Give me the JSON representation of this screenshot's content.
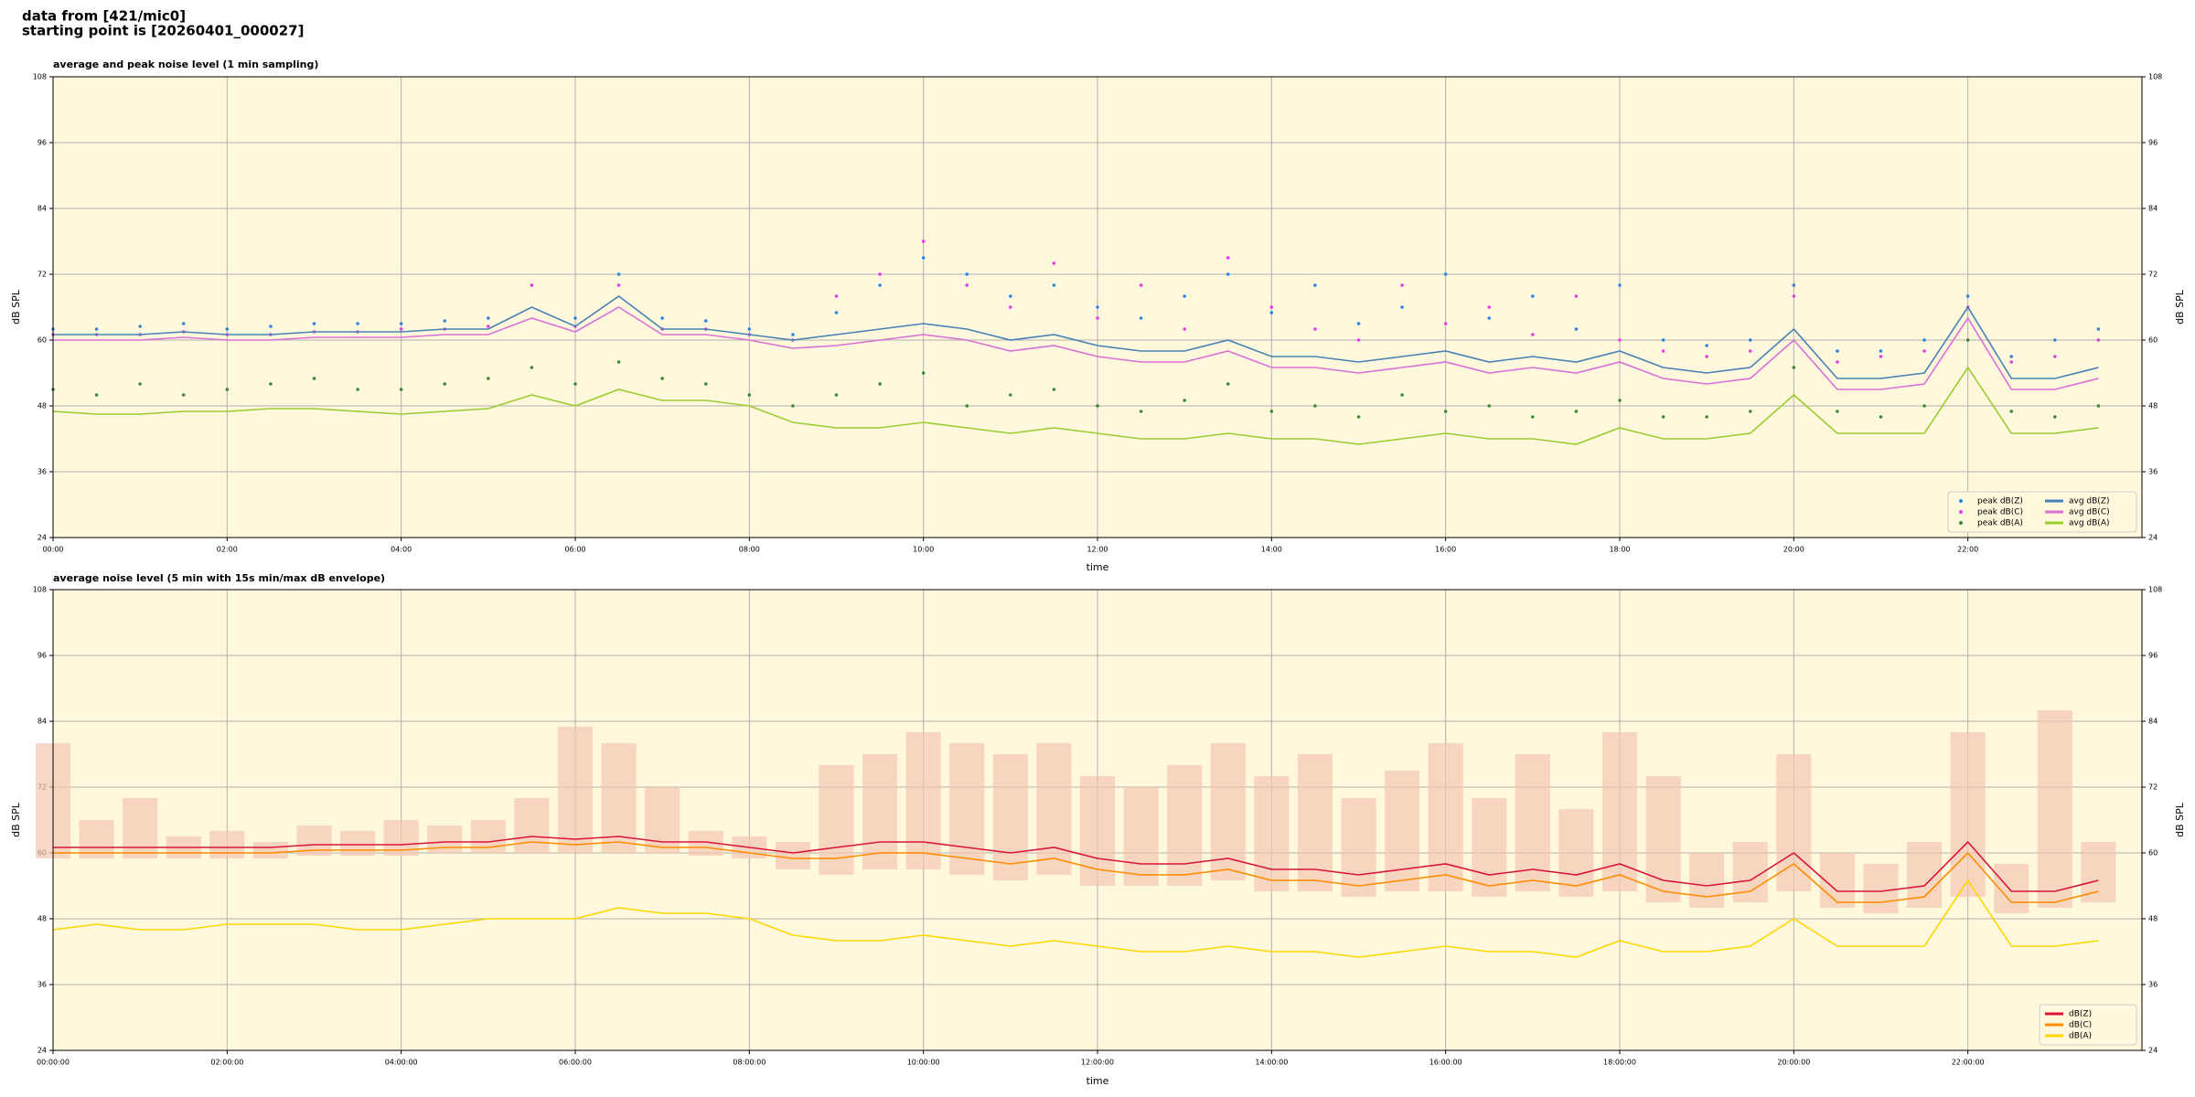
{
  "header": {
    "line1": "data from [421/mic0]",
    "line2": "starting point is [20260401_000027]"
  },
  "chart_data": [
    {
      "type": "line",
      "title": "average and peak noise level (1 min sampling)",
      "xlabel": "time",
      "ylabel": "dB SPL",
      "background": "#fff8dc",
      "grid": true,
      "legend": "lower right",
      "legend_columns": 2,
      "xlim": [
        0,
        24
      ],
      "ylim": [
        24,
        108
      ],
      "yticks": [
        24,
        36,
        48,
        60,
        72,
        84,
        96,
        108
      ],
      "xticks": [
        {
          "value": 0,
          "label": "00:00"
        },
        {
          "value": 2,
          "label": "02:00"
        },
        {
          "value": 4,
          "label": "04:00"
        },
        {
          "value": 6,
          "label": "06:00"
        },
        {
          "value": 8,
          "label": "08:00"
        },
        {
          "value": 10,
          "label": "10:00"
        },
        {
          "value": 12,
          "label": "12:00"
        },
        {
          "value": 14,
          "label": "14:00"
        },
        {
          "value": 16,
          "label": "16:00"
        },
        {
          "value": 18,
          "label": "18:00"
        },
        {
          "value": 20,
          "label": "20:00"
        },
        {
          "value": 22,
          "label": "22:00"
        }
      ],
      "x": [
        0,
        0.5,
        1,
        1.5,
        2,
        2.5,
        3,
        3.5,
        4,
        4.5,
        5,
        5.5,
        6,
        6.5,
        7,
        7.5,
        8,
        8.5,
        9,
        9.5,
        10,
        10.5,
        11,
        11.5,
        12,
        12.5,
        13,
        13.5,
        14,
        14.5,
        15,
        15.5,
        16,
        16.5,
        17,
        17.5,
        18,
        18.5,
        19,
        19.5,
        20,
        20.5,
        21,
        21.5,
        22,
        22.5,
        23,
        23.5
      ],
      "series": [
        {
          "name": "peak dB(Z)",
          "type": "scatter",
          "color": "#2e86de",
          "values": [
            62,
            62,
            62.5,
            63,
            62,
            62.5,
            63,
            63,
            63,
            63.5,
            64,
            70,
            64,
            72,
            64,
            63.5,
            62,
            61,
            65,
            70,
            75,
            72,
            68,
            70,
            66,
            64,
            68,
            72,
            65,
            70,
            63,
            66,
            72,
            64,
            68,
            62,
            70,
            60,
            59,
            60,
            70,
            58,
            58,
            60,
            68,
            57,
            60,
            62
          ]
        },
        {
          "name": "peak dB(C)",
          "type": "scatter",
          "color": "#e040e0",
          "values": [
            61,
            61,
            61,
            61.5,
            61,
            61,
            61.5,
            61.5,
            62,
            62,
            62.5,
            70,
            62.5,
            70,
            62,
            62,
            61,
            60,
            68,
            72,
            78,
            70,
            66,
            74,
            64,
            70,
            62,
            75,
            66,
            62,
            60,
            70,
            63,
            66,
            61,
            68,
            60,
            58,
            57,
            58,
            68,
            56,
            57,
            58,
            66,
            56,
            57,
            60
          ]
        },
        {
          "name": "peak dB(A)",
          "type": "scatter",
          "color": "#3a8a3a",
          "values": [
            51,
            50,
            52,
            50,
            51,
            52,
            53,
            51,
            51,
            52,
            53,
            55,
            52,
            56,
            53,
            52,
            50,
            48,
            50,
            52,
            54,
            48,
            50,
            51,
            48,
            47,
            49,
            52,
            47,
            48,
            46,
            50,
            47,
            48,
            46,
            47,
            49,
            46,
            46,
            47,
            55,
            47,
            46,
            48,
            60,
            47,
            46,
            48
          ]
        },
        {
          "name": "avg dB(Z)",
          "type": "line",
          "color": "#4682b4",
          "values": [
            61,
            61,
            61,
            61.5,
            61,
            61,
            61.5,
            61.5,
            61.5,
            62,
            62,
            66,
            62.5,
            68,
            62,
            62,
            61,
            60,
            61,
            62,
            63,
            62,
            60,
            61,
            59,
            58,
            58,
            60,
            57,
            57,
            56,
            57,
            58,
            56,
            57,
            56,
            58,
            55,
            54,
            55,
            62,
            53,
            53,
            54,
            66,
            53,
            53,
            55
          ]
        },
        {
          "name": "avg dB(C)",
          "type": "line",
          "color": "#da70d6",
          "values": [
            60,
            60,
            60,
            60.5,
            60,
            60,
            60.5,
            60.5,
            60.5,
            61,
            61,
            64,
            61.5,
            66,
            61,
            61,
            60,
            58.5,
            59,
            60,
            61,
            60,
            58,
            59,
            57,
            56,
            56,
            58,
            55,
            55,
            54,
            55,
            56,
            54,
            55,
            54,
            56,
            53,
            52,
            53,
            60,
            51,
            51,
            52,
            64,
            51,
            51,
            53
          ]
        },
        {
          "name": "avg dB(A)",
          "type": "line",
          "color": "#9acd32",
          "values": [
            47,
            46.5,
            46.5,
            47,
            47,
            47.5,
            47.5,
            47,
            46.5,
            47,
            47.5,
            50,
            48,
            51,
            49,
            49,
            48,
            45,
            44,
            44,
            45,
            44,
            43,
            44,
            43,
            42,
            42,
            43,
            42,
            42,
            41,
            42,
            43,
            42,
            42,
            41,
            44,
            42,
            42,
            43,
            50,
            43,
            43,
            43,
            55,
            43,
            43,
            44
          ]
        }
      ]
    },
    {
      "type": "line",
      "title": "average noise level (5 min with 15s min/max dB envelope)",
      "xlabel": "time",
      "ylabel": "dB SPL",
      "background": "#fff8dc",
      "grid": true,
      "legend": "lower right",
      "legend_columns": 1,
      "xlim": [
        0,
        24
      ],
      "ylim": [
        24,
        108
      ],
      "yticks": [
        24,
        36,
        48,
        60,
        72,
        84,
        96,
        108
      ],
      "xticks": [
        {
          "value": 0,
          "label": "00:00:00"
        },
        {
          "value": 2,
          "label": "02:00:00"
        },
        {
          "value": 4,
          "label": "04:00:00"
        },
        {
          "value": 6,
          "label": "06:00:00"
        },
        {
          "value": 8,
          "label": "08:00:00"
        },
        {
          "value": 10,
          "label": "10:00:00"
        },
        {
          "value": 12,
          "label": "12:00:00"
        },
        {
          "value": 14,
          "label": "14:00:00"
        },
        {
          "value": 16,
          "label": "16:00:00"
        },
        {
          "value": 18,
          "label": "18:00:00"
        },
        {
          "value": 20,
          "label": "20:00:00"
        },
        {
          "value": 22,
          "label": "22:00:00"
        }
      ],
      "x": [
        0,
        0.5,
        1,
        1.5,
        2,
        2.5,
        3,
        3.5,
        4,
        4.5,
        5,
        5.5,
        6,
        6.5,
        7,
        7.5,
        8,
        8.5,
        9,
        9.5,
        10,
        10.5,
        11,
        11.5,
        12,
        12.5,
        13,
        13.5,
        14,
        14.5,
        15,
        15.5,
        16,
        16.5,
        17,
        17.5,
        18,
        18.5,
        19,
        19.5,
        20,
        20.5,
        21,
        21.5,
        22,
        22.5,
        23,
        23.5
      ],
      "envelope": {
        "color": "#f5c6b0",
        "low": [
          59,
          59,
          59,
          59,
          59,
          59,
          59.5,
          59.5,
          59.5,
          60,
          60,
          60,
          60,
          60,
          60,
          59.5,
          59,
          57,
          56,
          57,
          57,
          56,
          55,
          56,
          54,
          54,
          54,
          55,
          53,
          53,
          52,
          53,
          53,
          52,
          53,
          52,
          53,
          51,
          50,
          51,
          53,
          50,
          49,
          50,
          52,
          49,
          50,
          51
        ],
        "high": [
          80,
          66,
          70,
          63,
          64,
          62,
          65,
          64,
          66,
          65,
          66,
          70,
          83,
          80,
          72,
          64,
          63,
          62,
          76,
          78,
          82,
          80,
          78,
          80,
          74,
          72,
          76,
          80,
          74,
          78,
          70,
          75,
          80,
          70,
          78,
          68,
          82,
          74,
          60,
          62,
          78,
          60,
          58,
          62,
          82,
          58,
          86,
          62
        ]
      },
      "series": [
        {
          "name": "dB(Z)",
          "type": "line",
          "color": "#dc143c",
          "values": [
            61,
            61,
            61,
            61,
            61,
            61,
            61.5,
            61.5,
            61.5,
            62,
            62,
            63,
            62.5,
            63,
            62,
            62,
            61,
            60,
            61,
            62,
            62,
            61,
            60,
            61,
            59,
            58,
            58,
            59,
            57,
            57,
            56,
            57,
            58,
            56,
            57,
            56,
            58,
            55,
            54,
            55,
            60,
            53,
            53,
            54,
            62,
            53,
            53,
            55
          ]
        },
        {
          "name": "dB(C)",
          "type": "line",
          "color": "#ff8c00",
          "values": [
            60,
            60,
            60,
            60,
            60,
            60,
            60.5,
            60.5,
            60.5,
            61,
            61,
            62,
            61.5,
            62,
            61,
            61,
            60,
            59,
            59,
            60,
            60,
            59,
            58,
            59,
            57,
            56,
            56,
            57,
            55,
            55,
            54,
            55,
            56,
            54,
            55,
            54,
            56,
            53,
            52,
            53,
            58,
            51,
            51,
            52,
            60,
            51,
            51,
            53
          ]
        },
        {
          "name": "dB(A)",
          "type": "line",
          "color": "#ffd700",
          "values": [
            46,
            47,
            46,
            46,
            47,
            47,
            47,
            46,
            46,
            47,
            48,
            48,
            48,
            50,
            49,
            49,
            48,
            45,
            44,
            44,
            45,
            44,
            43,
            44,
            43,
            42,
            42,
            43,
            42,
            42,
            41,
            42,
            43,
            42,
            42,
            41,
            44,
            42,
            42,
            43,
            48,
            43,
            43,
            43,
            55,
            43,
            43,
            44
          ]
        }
      ]
    }
  ]
}
